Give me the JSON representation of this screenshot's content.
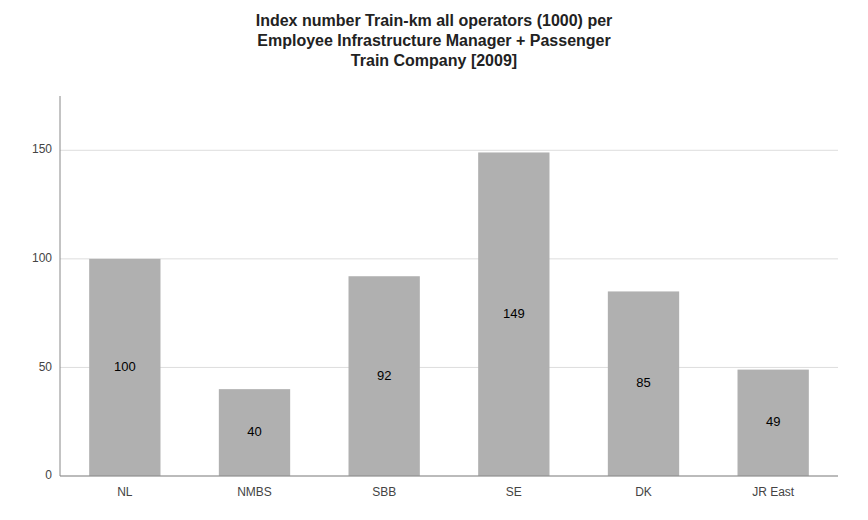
{
  "chart_data": {
    "type": "bar",
    "title": "Index number Train-km all operators (1000) per\nEmployee Infrastructure Manager + Passenger\nTrain Company [2009]",
    "categories": [
      "NL",
      "NMBS",
      "SBB",
      "SE",
      "DK",
      "JR East"
    ],
    "values": [
      100,
      40,
      92,
      149,
      85,
      49
    ],
    "color": "#b0b0b0",
    "ylim": [
      0,
      175
    ],
    "yticks": [
      0,
      50,
      100,
      150
    ],
    "grid": true,
    "data_labels": true
  }
}
